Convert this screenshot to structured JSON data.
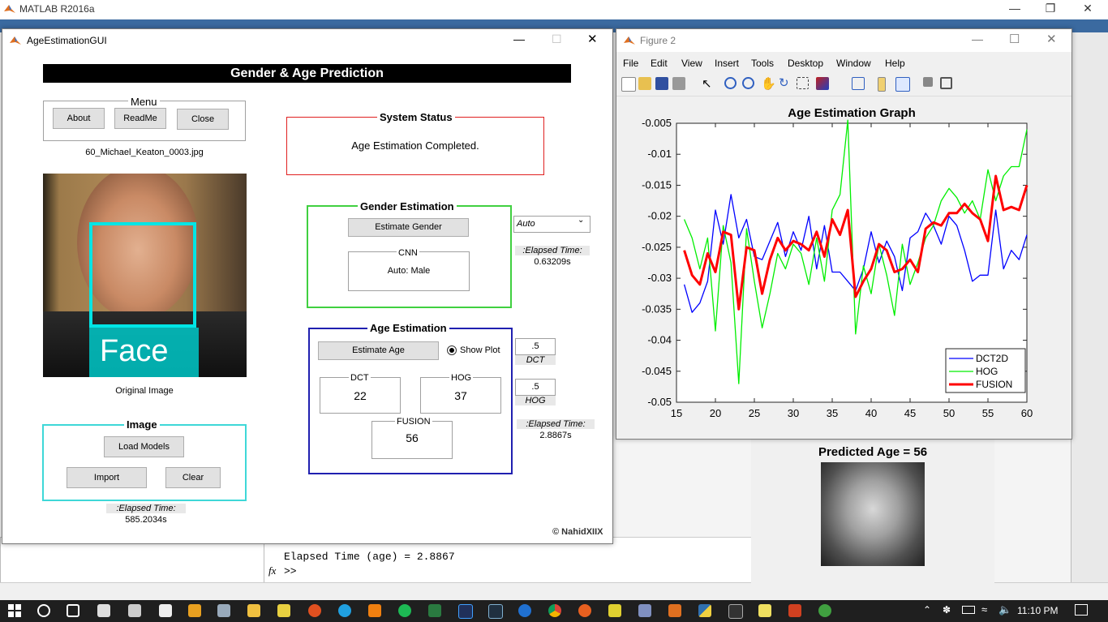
{
  "matlab": {
    "title": "MATLAB R2016a",
    "cmd_line1": "Elapsed Time (age) = 2.8867",
    "cmd_prompt": ">>",
    "fx_label": "fx"
  },
  "gui": {
    "title": "AgeEstimationGUI",
    "banner": "Gender & Age Prediction",
    "menu": {
      "label": "Menu",
      "about": "About",
      "readme": "ReadMe",
      "close": "Close"
    },
    "filename": "60_Michael_Keaton_0003.jpg",
    "face_label": "Face",
    "original_caption": "Original Image",
    "image_panel": {
      "label": "Image",
      "load_models": "Load Models",
      "import": "Import",
      "clear": "Clear",
      "elapsed_label": ":Elapsed Time:",
      "elapsed_value": "585.2034s"
    },
    "status": {
      "label": "System Status",
      "text": "Age Estimation Completed."
    },
    "gender": {
      "label": "Gender Estimation",
      "button": "Estimate Gender",
      "cnn_label": "CNN",
      "cnn_value": "Auto: Male",
      "mode_selected": "Auto",
      "elapsed_label": ":Elapsed Time:",
      "elapsed_value": "0.63209s"
    },
    "age": {
      "label": "Age Estimation",
      "button": "Estimate Age",
      "show_plot": "Show Plot",
      "dct_label": "DCT",
      "dct_value": "22",
      "hog_label": "HOG",
      "hog_value": "37",
      "fusion_label": "FUSION",
      "fusion_value": "56",
      "dct_weight": ".5",
      "dct_weight_label": "DCT",
      "hog_weight": ".5",
      "hog_weight_label": "HOG",
      "elapsed_label": ":Elapsed Time:",
      "elapsed_value": "2.8867s"
    },
    "copyright": "© NahidXIIX"
  },
  "figure2": {
    "title": "Figure 2",
    "menu": [
      "File",
      "Edit",
      "View",
      "Insert",
      "Tools",
      "Desktop",
      "Window",
      "Help"
    ]
  },
  "predicted": {
    "title": "Predicted Age = 56"
  },
  "taskbar": {
    "time": "11:10 PM"
  },
  "chart_data": {
    "type": "line",
    "title": "Age Estimation Graph",
    "xlim": [
      15,
      60
    ],
    "ylim": [
      -0.05,
      -0.005
    ],
    "xticks": [
      15,
      20,
      25,
      30,
      35,
      40,
      45,
      50,
      55,
      60
    ],
    "yticks": [
      -0.005,
      -0.01,
      -0.015,
      -0.02,
      -0.025,
      -0.03,
      -0.035,
      -0.04,
      -0.045,
      -0.05
    ],
    "ytick_labels": [
      "-0.005",
      "-0.01",
      "-0.015",
      "-0.02",
      "-0.025",
      "-0.03",
      "-0.035",
      "-0.04",
      "-0.045",
      "-0.05"
    ],
    "legend_position": "bottom-right",
    "x": [
      16,
      17,
      18,
      19,
      20,
      21,
      22,
      23,
      24,
      25,
      26,
      27,
      28,
      29,
      30,
      31,
      32,
      33,
      34,
      35,
      36,
      37,
      38,
      39,
      40,
      41,
      42,
      43,
      44,
      45,
      46,
      47,
      48,
      49,
      50,
      51,
      52,
      53,
      54,
      55,
      56,
      57,
      58,
      59,
      60
    ],
    "series": [
      {
        "name": "DCT2D",
        "color": "#0000ff",
        "width": 1.3,
        "values": [
          -0.031,
          -0.0355,
          -0.034,
          -0.0305,
          -0.019,
          -0.0245,
          -0.0165,
          -0.0235,
          -0.0205,
          -0.0265,
          -0.027,
          -0.024,
          -0.021,
          -0.0265,
          -0.0225,
          -0.0255,
          -0.02,
          -0.0285,
          -0.0215,
          -0.029,
          -0.029,
          -0.0305,
          -0.032,
          -0.0285,
          -0.0225,
          -0.0275,
          -0.024,
          -0.0265,
          -0.032,
          -0.0235,
          -0.0225,
          -0.0195,
          -0.0215,
          -0.0245,
          -0.02,
          -0.0215,
          -0.0255,
          -0.0305,
          -0.0295,
          -0.0295,
          -0.019,
          -0.0285,
          -0.0255,
          -0.027,
          -0.023
        ]
      },
      {
        "name": "HOG",
        "color": "#00ee00",
        "width": 1.3,
        "values": [
          -0.0205,
          -0.0235,
          -0.0285,
          -0.0235,
          -0.0385,
          -0.0215,
          -0.0275,
          -0.047,
          -0.022,
          -0.0305,
          -0.038,
          -0.0325,
          -0.026,
          -0.0285,
          -0.0245,
          -0.026,
          -0.031,
          -0.0235,
          -0.0305,
          -0.019,
          -0.0165,
          -0.0045,
          -0.039,
          -0.028,
          -0.0325,
          -0.0245,
          -0.0295,
          -0.036,
          -0.0245,
          -0.031,
          -0.0275,
          -0.0235,
          -0.0215,
          -0.0175,
          -0.0155,
          -0.017,
          -0.0195,
          -0.0175,
          -0.0205,
          -0.0125,
          -0.0175,
          -0.0135,
          -0.012,
          -0.012,
          -0.006
        ]
      },
      {
        "name": "FUSION",
        "color": "#ff0000",
        "width": 3,
        "values": [
          -0.0255,
          -0.0295,
          -0.031,
          -0.026,
          -0.029,
          -0.0225,
          -0.023,
          -0.035,
          -0.025,
          -0.0255,
          -0.0325,
          -0.027,
          -0.0235,
          -0.0255,
          -0.024,
          -0.0245,
          -0.0255,
          -0.0225,
          -0.0265,
          -0.0205,
          -0.023,
          -0.019,
          -0.033,
          -0.0305,
          -0.0285,
          -0.0245,
          -0.0255,
          -0.029,
          -0.0285,
          -0.027,
          -0.029,
          -0.022,
          -0.021,
          -0.0215,
          -0.0195,
          -0.0195,
          -0.018,
          -0.0195,
          -0.0205,
          -0.024,
          -0.0135,
          -0.019,
          -0.0185,
          -0.019,
          -0.015
        ]
      }
    ]
  }
}
